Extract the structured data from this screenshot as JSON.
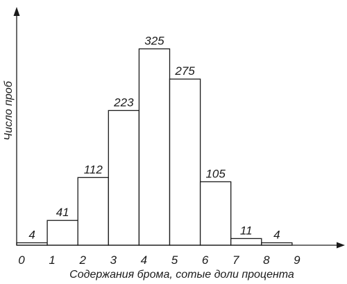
{
  "chart_data": {
    "type": "bar",
    "xlabel": "Содержания брома, сотые доли процента",
    "ylabel": "Число проб",
    "x_ticks": [
      "0",
      "1",
      "2",
      "3",
      "4",
      "5",
      "6",
      "7",
      "8",
      "9"
    ],
    "bins": [
      {
        "from": 0,
        "to": 1,
        "value": 4
      },
      {
        "from": 1,
        "to": 2,
        "value": 41
      },
      {
        "from": 2,
        "to": 3,
        "value": 112
      },
      {
        "from": 3,
        "to": 4,
        "value": 223
      },
      {
        "from": 4,
        "to": 5,
        "value": 325
      },
      {
        "from": 5,
        "to": 6,
        "value": 275
      },
      {
        "from": 6,
        "to": 7,
        "value": 105
      },
      {
        "from": 7,
        "to": 8,
        "value": 11
      },
      {
        "from": 8,
        "to": 9,
        "value": 4
      }
    ],
    "value_labels": [
      "4",
      "41",
      "112",
      "223",
      "325",
      "275",
      "105",
      "11",
      "4"
    ],
    "xlim": [
      0,
      10
    ],
    "ylim": [
      0,
      360
    ],
    "grid": false,
    "legend": "none"
  }
}
